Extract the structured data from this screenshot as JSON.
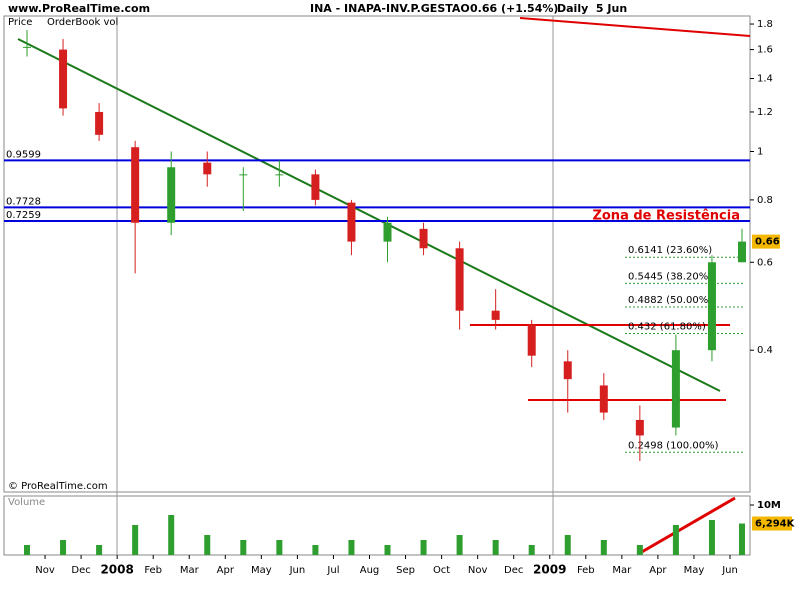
{
  "header": {
    "site": "www.ProRealTime.com",
    "title": "INA - INAPA-INV.P.GESTAO",
    "quote": "0.66 (+1.54%)",
    "period": "Daily  5 Jun"
  },
  "chart_data": [
    {
      "type": "candlestick",
      "legend": [
        "Price",
        "OrderBook vol"
      ],
      "copyright": "© ProRealTime.com",
      "annotation": "Zona de Resistência",
      "categories": [
        null,
        "Nov",
        "Dec",
        "2008",
        "Feb",
        "Mar",
        "Apr",
        "May",
        "Jun",
        "Jul",
        "Aug",
        "Sep",
        "Oct",
        "Nov",
        "Dec",
        "2009",
        "Feb",
        "Mar",
        "Apr",
        "May",
        "Jun"
      ],
      "open": [
        1.62,
        1.6,
        1.2,
        1.02,
        0.72,
        0.95,
        0.9,
        0.9,
        0.9,
        0.79,
        0.66,
        0.7,
        0.64,
        0.48,
        0.45,
        0.38,
        0.34,
        0.29,
        0.28,
        0.4,
        0.6
      ],
      "high": [
        1.75,
        1.68,
        1.25,
        1.05,
        1.0,
        1.0,
        0.93,
        0.96,
        0.92,
        0.8,
        0.74,
        0.72,
        0.66,
        0.53,
        0.46,
        0.4,
        0.36,
        0.31,
        0.43,
        0.62,
        0.7
      ],
      "low": [
        1.55,
        1.18,
        1.05,
        0.57,
        0.68,
        0.85,
        0.76,
        0.85,
        0.78,
        0.62,
        0.6,
        0.62,
        0.44,
        0.44,
        0.37,
        0.3,
        0.29,
        0.24,
        0.27,
        0.38,
        0.6
      ],
      "close": [
        1.62,
        1.22,
        1.08,
        0.72,
        0.93,
        0.9,
        0.9,
        0.9,
        0.8,
        0.66,
        0.72,
        0.64,
        0.48,
        0.46,
        0.39,
        0.35,
        0.3,
        0.27,
        0.4,
        0.6,
        0.66
      ],
      "up_color": "#2e9e2e",
      "down_color": "#d62020",
      "last_price": 0.66,
      "levels": [
        0.9599,
        0.7728,
        0.7259
      ],
      "level_color": "#0000dd",
      "fib_levels": [
        {
          "value": 0.6141,
          "label": "0.6141 (23.60%)"
        },
        {
          "value": 0.5445,
          "label": "0.5445 (38.20%)"
        },
        {
          "value": 0.4882,
          "label": "0.4882 (50.00%)"
        },
        {
          "value": 0.432,
          "label": "0.432 (61.80%)"
        },
        {
          "value": 0.2498,
          "label": "0.2498 (100.00%)"
        }
      ],
      "log_scale": true,
      "ylim": [
        0.208,
        1.868
      ],
      "yticks": [
        0.4,
        0.6,
        0.8,
        1,
        1.2,
        1.4,
        1.6,
        1.8
      ]
    },
    {
      "type": "bar",
      "title": "Volume",
      "color": "#2e9e2e",
      "values": [
        2000000,
        3000000,
        2000000,
        6000000,
        8000000,
        4000000,
        3000000,
        3000000,
        2000000,
        3000000,
        2000000,
        3000000,
        4000000,
        3000000,
        2000000,
        4000000,
        3000000,
        2000000,
        6000000,
        7000000,
        6294000
      ],
      "value_labels": [
        null,
        null,
        null,
        null,
        null,
        null,
        null,
        null,
        null,
        null,
        null,
        null,
        null,
        null,
        null,
        null,
        null,
        null,
        null,
        null,
        "6,294K"
      ],
      "ylim": [
        0,
        11800000
      ],
      "yticks": [
        {
          "value": 10000000,
          "label": "10M"
        }
      ]
    }
  ]
}
